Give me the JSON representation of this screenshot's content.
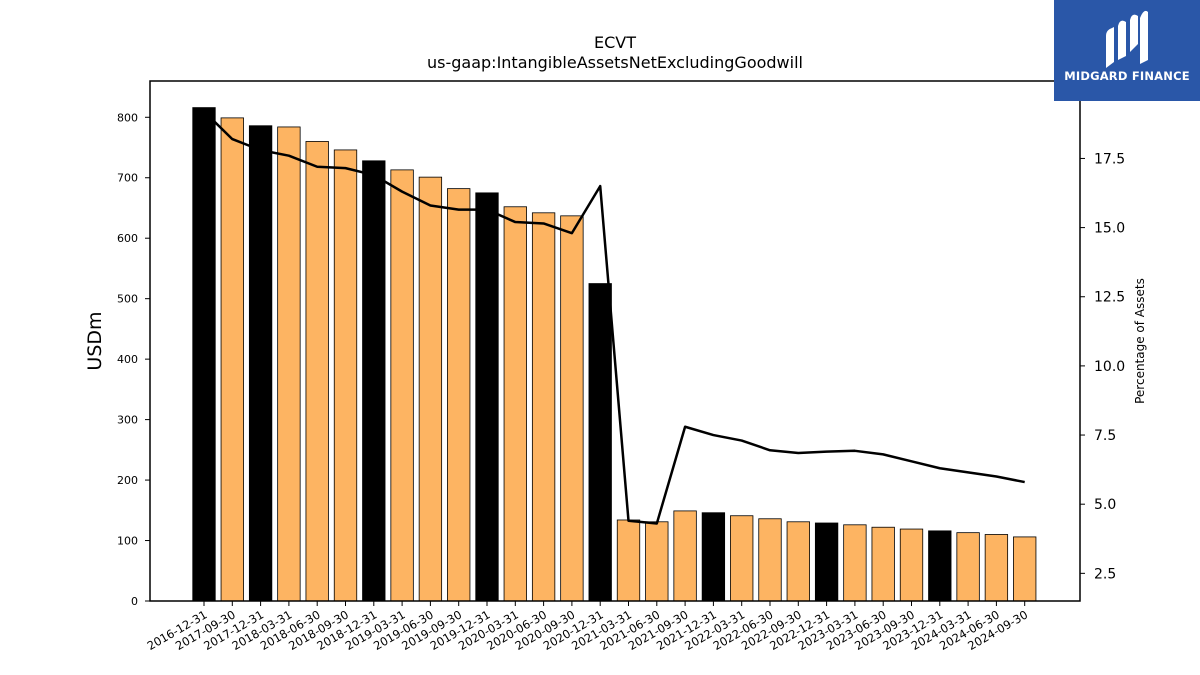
{
  "logo": {
    "text": "MIDGARD FINANCE",
    "icon": "midgard-m-logo-icon",
    "background": "#2a57a8"
  },
  "chart_data": {
    "type": "bar",
    "title": "ECVT",
    "subtitle": "us-gaap:IntangibleAssetsNetExcludingGoodwill",
    "ylabel": "USDm",
    "y2label": "Percentage of Assets",
    "ylim": [
      0,
      860
    ],
    "y2lim": [
      1.5,
      20.3
    ],
    "yticks": [
      0,
      100,
      200,
      300,
      400,
      500,
      600,
      700,
      800
    ],
    "y2ticks": [
      2.5,
      5.0,
      7.5,
      10.0,
      12.5,
      15.0,
      17.5
    ],
    "categories": [
      "2016-12-31",
      "2017-09-30",
      "2017-12-31",
      "2018-03-31",
      "2018-06-30",
      "2018-09-30",
      "2018-12-31",
      "2019-03-31",
      "2019-06-30",
      "2019-09-30",
      "2019-12-31",
      "2020-03-31",
      "2020-06-30",
      "2020-09-30",
      "2020-12-31",
      "2021-03-31",
      "2021-06-30",
      "2021-09-30",
      "2021-12-31",
      "2022-03-31",
      "2022-06-30",
      "2022-09-30",
      "2022-12-31",
      "2023-03-31",
      "2023-06-30",
      "2023-09-30",
      "2023-12-31",
      "2024-03-31",
      "2024-06-30",
      "2024-09-30"
    ],
    "series": [
      {
        "type": "bar",
        "values": [
          816,
          799,
          786,
          784,
          760,
          746,
          728,
          713,
          701,
          682,
          675,
          652,
          642,
          637,
          525,
          134,
          131,
          149,
          146,
          141,
          136,
          131,
          129,
          126,
          122,
          119,
          116,
          113,
          110,
          106
        ],
        "year_end": [
          true,
          false,
          true,
          false,
          false,
          false,
          true,
          false,
          false,
          false,
          true,
          false,
          false,
          false,
          true,
          false,
          false,
          false,
          true,
          false,
          false,
          false,
          true,
          false,
          false,
          false,
          true,
          false,
          false,
          false
        ]
      },
      {
        "type": "line",
        "axis": "right",
        "values": [
          19.2,
          18.2,
          17.8,
          17.6,
          17.2,
          17.15,
          16.9,
          16.3,
          15.8,
          15.65,
          15.65,
          15.2,
          15.15,
          14.8,
          16.5,
          4.4,
          4.3,
          7.8,
          7.5,
          7.3,
          6.95,
          6.85,
          6.9,
          6.93,
          6.8,
          6.55,
          6.3,
          6.15,
          6.0,
          5.8
        ]
      }
    ],
    "colors": {
      "year_end_bar": "#000000",
      "quarter_bar": "#fdb462",
      "line": "#000000"
    },
    "grid": false
  }
}
